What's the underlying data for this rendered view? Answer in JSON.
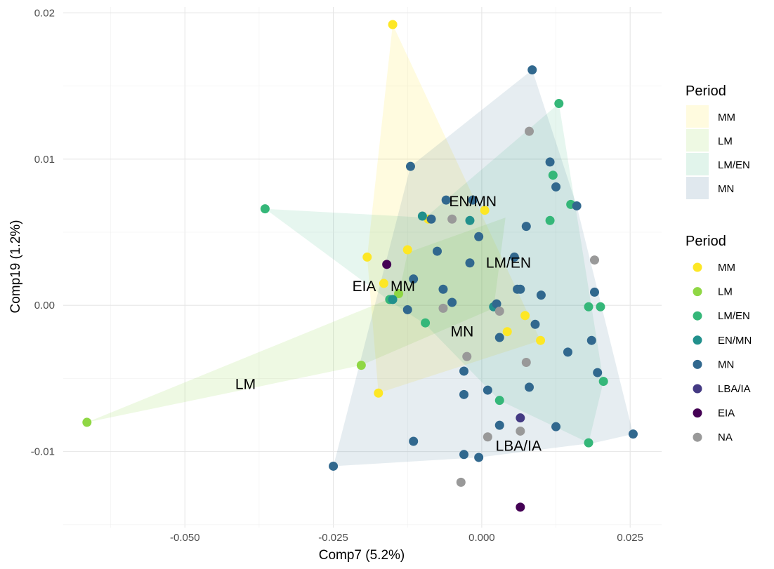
{
  "chart_data": {
    "type": "scatter",
    "xlabel": "Comp7 (5.2%)",
    "ylabel": "Comp19 (1.2%)",
    "xlim": [
      -0.0705,
      0.0303
    ],
    "ylim": [
      -0.0152,
      0.0204
    ],
    "x_ticks": [
      -0.05,
      -0.025,
      0.0,
      0.025
    ],
    "x_tick_labels": [
      "-0.050",
      "-0.025",
      "0.000",
      "0.025"
    ],
    "y_ticks": [
      -0.01,
      0.0,
      0.01,
      0.02
    ],
    "y_tick_labels": [
      "-0.01",
      "0.00",
      "0.01",
      "0.02"
    ],
    "grid": true,
    "legend_placement": "right",
    "legend_fill": {
      "title": "Period",
      "entries": [
        {
          "label": "MM",
          "color": "#FDE725"
        },
        {
          "label": "LM",
          "color": "#8FD744"
        },
        {
          "label": "LM/EN",
          "color": "#35B779"
        },
        {
          "label": "MN",
          "color": "#31688E"
        }
      ]
    },
    "legend_points": {
      "title": "Period",
      "entries": [
        {
          "label": "MM",
          "color": "#FDE725"
        },
        {
          "label": "LM",
          "color": "#8FD744"
        },
        {
          "label": "LM/EN",
          "color": "#35B779"
        },
        {
          "label": "EN/MN",
          "color": "#21908C"
        },
        {
          "label": "MN",
          "color": "#31688E"
        },
        {
          "label": "LBA/IA",
          "color": "#443A83"
        },
        {
          "label": "EIA",
          "color": "#440154"
        },
        {
          "label": "NA",
          "color": "#999999"
        }
      ]
    },
    "hull_labels": [
      {
        "text": "EN/MN",
        "x": -0.0015,
        "y": 0.0071
      },
      {
        "text": "LM/EN",
        "x": 0.0045,
        "y": 0.0029
      },
      {
        "text": "EIA",
        "x": -0.0198,
        "y": 0.0013
      },
      {
        "text": "MM",
        "x": -0.0133,
        "y": 0.0013
      },
      {
        "text": "MN",
        "x": -0.0033,
        "y": -0.0018
      },
      {
        "text": "LM",
        "x": -0.0398,
        "y": -0.0054
      },
      {
        "text": "LBA/IA",
        "x": 0.0062,
        "y": -0.0096
      }
    ],
    "hulls": [
      {
        "group": "MM",
        "color": "#FDE725",
        "opacity": 0.15,
        "points": [
          [
            -0.015,
            0.0192
          ],
          [
            0.0099,
            -0.0024
          ],
          [
            -0.0174,
            -0.006
          ],
          [
            -0.0193,
            0.0033
          ]
        ]
      },
      {
        "group": "LM",
        "color": "#8FD744",
        "opacity": 0.15,
        "points": [
          [
            -0.0665,
            -0.008
          ],
          [
            -0.014,
            0.0007
          ],
          [
            -0.0125,
            0.0036
          ],
          [
            0.004,
            0.006
          ],
          [
            0.002,
            -0.0002
          ],
          [
            -0.0203,
            -0.0041
          ]
        ]
      },
      {
        "group": "LM/EN",
        "color": "#35B779",
        "opacity": 0.12,
        "points": [
          [
            -0.0365,
            0.0066
          ],
          [
            -0.0095,
            0.006
          ],
          [
            0.013,
            0.0138
          ],
          [
            0.0205,
            -0.0052
          ],
          [
            0.018,
            -0.0094
          ],
          [
            0.003,
            -0.0065
          ],
          [
            -0.0095,
            -0.0013
          ],
          [
            -0.0155,
            0.0003
          ]
        ]
      },
      {
        "group": "MN",
        "color": "#31688E",
        "opacity": 0.12,
        "points": [
          [
            -0.025,
            -0.011
          ],
          [
            -0.012,
            0.0095
          ],
          [
            0.0085,
            0.0161
          ],
          [
            0.016,
            0.0068
          ],
          [
            0.0255,
            -0.0088
          ],
          [
            0.019,
            -0.0094
          ],
          [
            -0.0005,
            -0.0104
          ]
        ]
      }
    ],
    "series": [
      {
        "name": "MM",
        "color": "#FDE725",
        "points": [
          [
            -0.015,
            0.0192
          ],
          [
            -0.0193,
            0.0033
          ],
          [
            -0.0125,
            0.0038
          ],
          [
            -0.009,
            0.0059
          ],
          [
            0.0005,
            0.0065
          ],
          [
            -0.0165,
            0.0015
          ],
          [
            0.0073,
            -0.0007
          ],
          [
            0.0043,
            -0.0018
          ],
          [
            0.0099,
            -0.0024
          ],
          [
            -0.0174,
            -0.006
          ]
        ]
      },
      {
        "name": "LM",
        "color": "#8FD744",
        "points": [
          [
            -0.0665,
            -0.008
          ],
          [
            -0.014,
            0.0008
          ],
          [
            -0.0203,
            -0.0041
          ]
        ]
      },
      {
        "name": "LM/EN",
        "color": "#35B779",
        "points": [
          [
            -0.0365,
            0.0066
          ],
          [
            0.013,
            0.0138
          ],
          [
            0.012,
            0.0089
          ],
          [
            0.015,
            0.0069
          ],
          [
            0.0115,
            0.0058
          ],
          [
            -0.0095,
            -0.0012
          ],
          [
            0.018,
            -0.0001
          ],
          [
            0.02,
            -0.0001
          ],
          [
            0.0205,
            -0.0052
          ],
          [
            0.003,
            -0.0065
          ],
          [
            0.018,
            -0.0094
          ],
          [
            -0.0155,
            0.0004
          ]
        ]
      },
      {
        "name": "EN/MN",
        "color": "#21908C",
        "points": [
          [
            -0.01,
            0.0061
          ],
          [
            -0.002,
            0.0058
          ],
          [
            0.002,
            -0.0001
          ],
          [
            -0.015,
            0.0004
          ]
        ]
      },
      {
        "name": "MN",
        "color": "#31688E",
        "points": [
          [
            0.0085,
            0.0161
          ],
          [
            -0.012,
            0.0095
          ],
          [
            0.0115,
            0.0098
          ],
          [
            0.0125,
            0.0081
          ],
          [
            0.016,
            0.0068
          ],
          [
            -0.006,
            0.0072
          ],
          [
            -0.0015,
            0.0072
          ],
          [
            -0.0085,
            0.0059
          ],
          [
            0.0075,
            0.0054
          ],
          [
            -0.0005,
            0.0047
          ],
          [
            -0.0075,
            0.0037
          ],
          [
            0.0055,
            0.0033
          ],
          [
            -0.002,
            0.0029
          ],
          [
            -0.0115,
            0.0018
          ],
          [
            -0.0065,
            0.0011
          ],
          [
            0.006,
            0.0011
          ],
          [
            0.0065,
            0.0011
          ],
          [
            0.01,
            0.0007
          ],
          [
            0.019,
            0.0009
          ],
          [
            -0.005,
            0.0002
          ],
          [
            0.0025,
            0.0001
          ],
          [
            -0.0125,
            -0.0003
          ],
          [
            0.009,
            -0.0013
          ],
          [
            0.003,
            -0.0022
          ],
          [
            0.0145,
            -0.0032
          ],
          [
            0.0185,
            -0.0024
          ],
          [
            -0.003,
            -0.0045
          ],
          [
            0.0195,
            -0.0046
          ],
          [
            0.001,
            -0.0058
          ],
          [
            0.008,
            -0.0056
          ],
          [
            -0.003,
            -0.0061
          ],
          [
            0.003,
            -0.0082
          ],
          [
            0.0125,
            -0.0083
          ],
          [
            0.0255,
            -0.0088
          ],
          [
            -0.0115,
            -0.0093
          ],
          [
            -0.003,
            -0.0102
          ],
          [
            -0.0005,
            -0.0104
          ],
          [
            -0.025,
            -0.011
          ]
        ]
      },
      {
        "name": "LBA/IA",
        "color": "#443A83",
        "points": [
          [
            0.0065,
            -0.0077
          ]
        ]
      },
      {
        "name": "EIA",
        "color": "#440154",
        "points": [
          [
            -0.016,
            0.0028
          ],
          [
            0.0065,
            -0.0138
          ]
        ]
      },
      {
        "name": "NA",
        "color": "#999999",
        "points": [
          [
            0.008,
            0.0119
          ],
          [
            0.019,
            0.0031
          ],
          [
            -0.005,
            0.0059
          ],
          [
            0.003,
            -0.0004
          ],
          [
            -0.0065,
            -0.0002
          ],
          [
            -0.0025,
            -0.0035
          ],
          [
            0.0075,
            -0.0039
          ],
          [
            0.0065,
            -0.0086
          ],
          [
            0.001,
            -0.009
          ],
          [
            -0.0035,
            -0.0121
          ]
        ]
      }
    ]
  }
}
